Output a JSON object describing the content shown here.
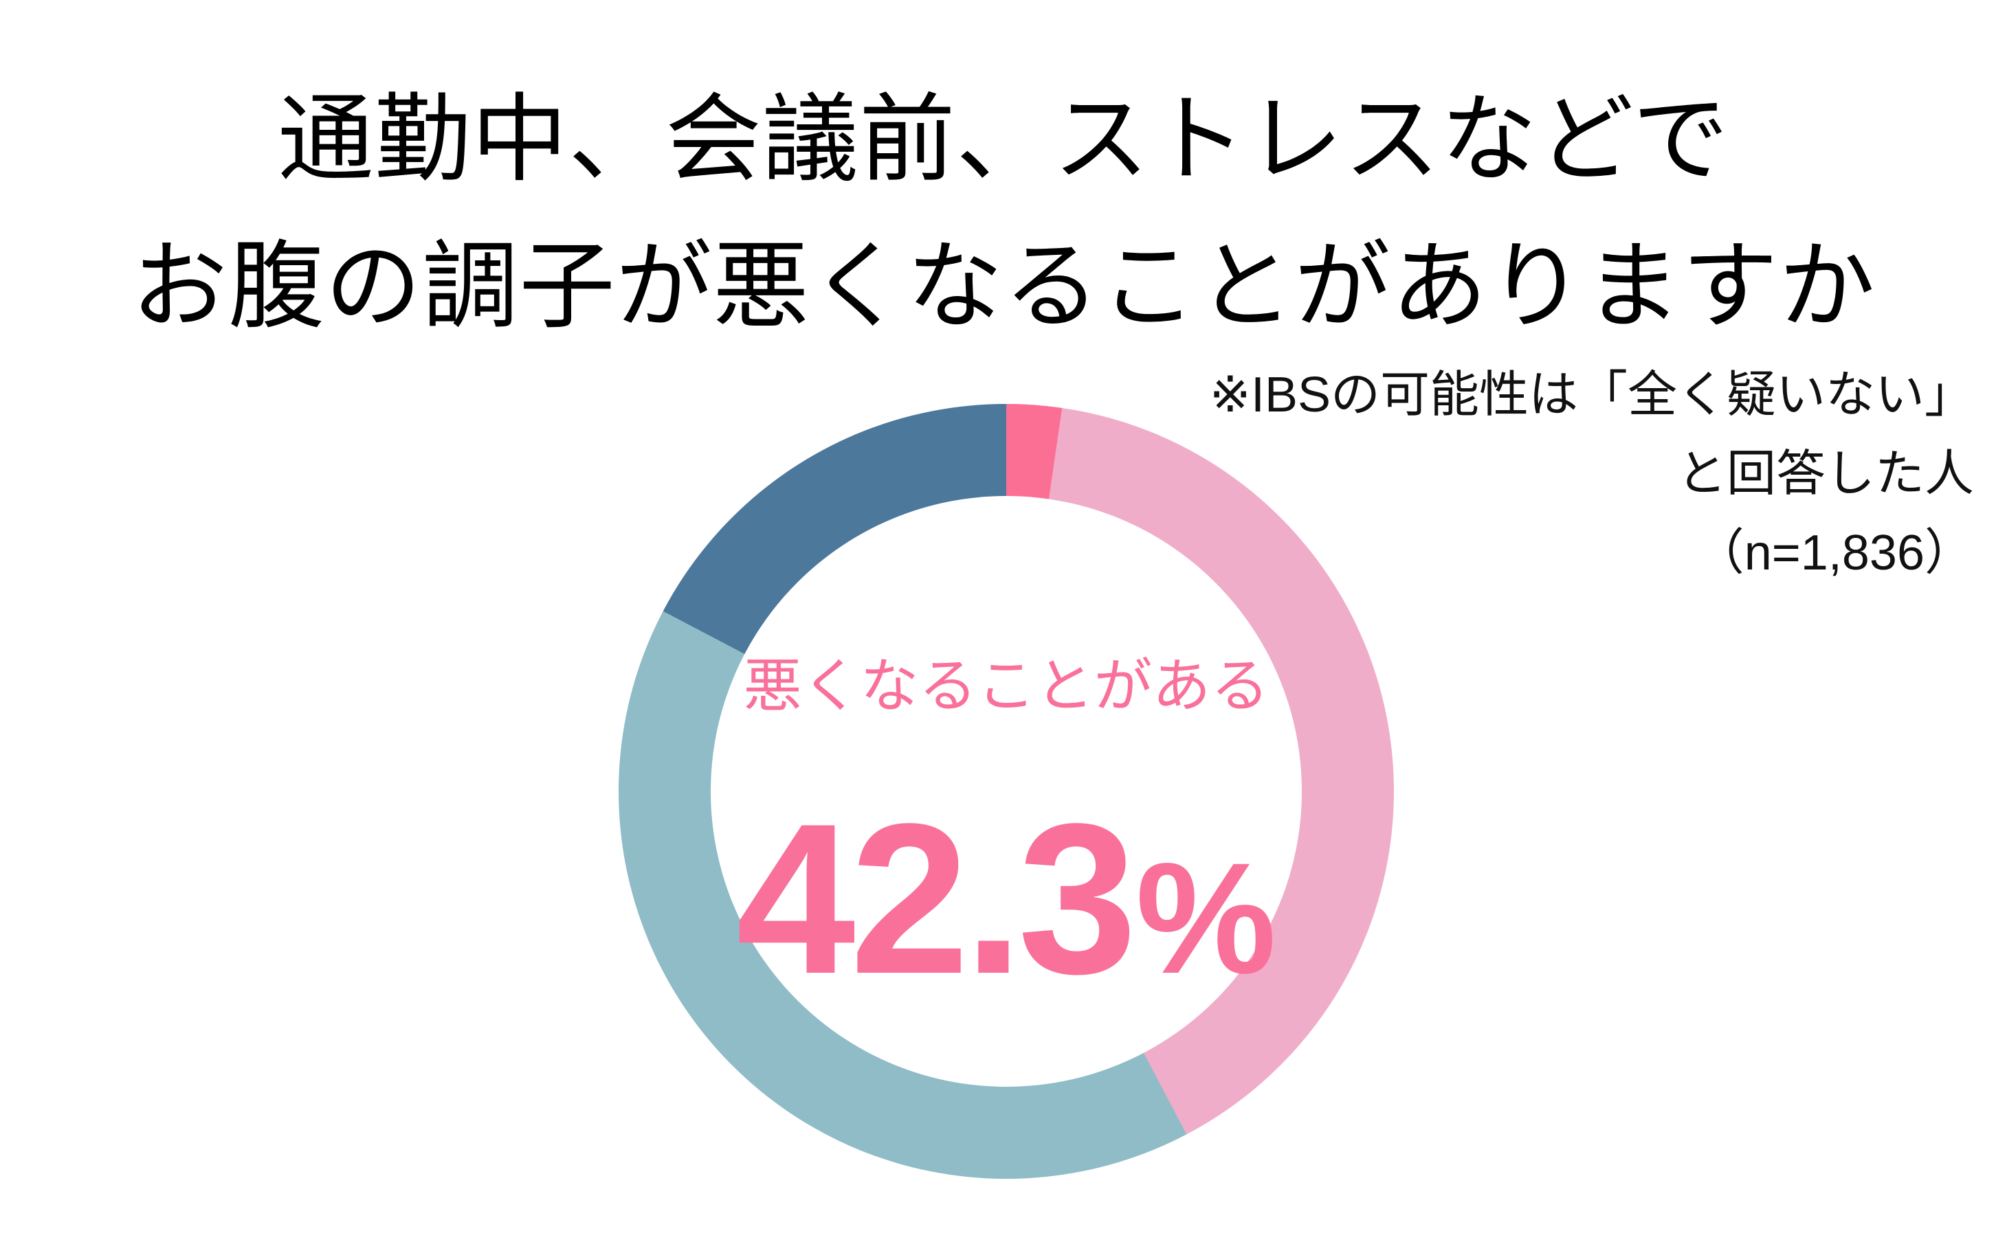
{
  "title": {
    "line1": "通勤中、会議前、ストレスなどで",
    "line2": "お腹の調子が悪くなることがありますか"
  },
  "note": {
    "line1": "※IBSの可能性は「全く疑いない」",
    "line2": "と回答した人",
    "line3": "（n=1,836）"
  },
  "donut": {
    "center_label": "悪くなることがある",
    "center_value": "42.3",
    "center_unit": "%"
  },
  "colors": {
    "background": "#ffffff",
    "title_text": "#000000",
    "note_text": "#111111",
    "center_text_pink": "#f9719b",
    "segment_pink_strong": "#fc6f95",
    "segment_pink_light": "#f0adc9",
    "segment_teal": "#8fbcc7",
    "segment_blue_dark": "#4c789c"
  },
  "chart_data": {
    "type": "pie",
    "subtype": "donut",
    "title": "通勤中、会議前、ストレスなどでお腹の調子が悪くなることがありますか",
    "annotation": "※IBSの可能性は「全く疑いない」と回答した人（n=1,836）",
    "n": "1,836",
    "center_label": "悪くなることがある",
    "center_value_pct": 42.3,
    "units": "%",
    "start_angle_deg": 0,
    "direction": "clockwise",
    "inner_radius_ratio": 0.76,
    "legend": "none",
    "segments": [
      {
        "name": "pink-strong",
        "value_pct": 2.3,
        "color": "#fc6f95",
        "included_in_center_value": true
      },
      {
        "name": "pink-light",
        "value_pct": 40.0,
        "color": "#f0adc9",
        "included_in_center_value": true
      },
      {
        "name": "teal",
        "value_pct": 40.4,
        "color": "#8fbcc7",
        "included_in_center_value": false
      },
      {
        "name": "blue-dark",
        "value_pct": 17.3,
        "color": "#4c789c",
        "included_in_center_value": false
      }
    ]
  }
}
